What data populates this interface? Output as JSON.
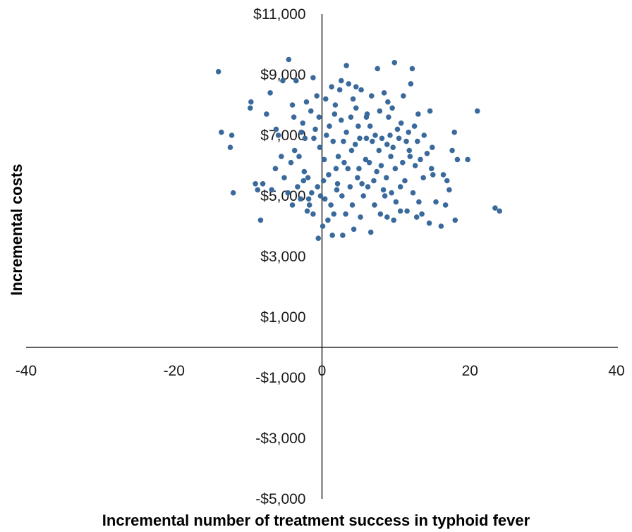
{
  "chart_data": {
    "type": "scatter",
    "title": "",
    "xlabel": "Incremental number of treatment success in typhoid fever",
    "ylabel": "Incremental costs",
    "xlim": [
      -40,
      40
    ],
    "ylim": [
      -5000,
      11000
    ],
    "x_ticks": [
      -40,
      -20,
      0,
      20,
      40
    ],
    "x_tick_labels": [
      "-40",
      "-20",
      "0",
      "20",
      "40"
    ],
    "y_ticks": [
      11000,
      9000,
      7000,
      5000,
      3000,
      1000,
      -1000,
      -3000,
      -5000
    ],
    "y_tick_labels": [
      "$11,000",
      "$9,000",
      "$7,000",
      "$5,000",
      "$3,000",
      "$1,000",
      "-$1,000",
      "-$3,000",
      "-$5,000"
    ],
    "grid": false,
    "legend": "none",
    "marker_color": "#3a6a9c",
    "points": [
      [
        -14,
        9100
      ],
      [
        -13.6,
        7100
      ],
      [
        -12.2,
        7000
      ],
      [
        -12.4,
        6600
      ],
      [
        -12,
        5100
      ],
      [
        -9.6,
        8100
      ],
      [
        -9.7,
        7900
      ],
      [
        -9,
        5400
      ],
      [
        -8.7,
        5200
      ],
      [
        -8.3,
        4200
      ],
      [
        -8,
        5400
      ],
      [
        -7.5,
        7700
      ],
      [
        -7,
        8400
      ],
      [
        -6.2,
        7200
      ],
      [
        -5.9,
        7000
      ],
      [
        -4.5,
        9500
      ],
      [
        -5.3,
        8800
      ],
      [
        -3.5,
        8800
      ],
      [
        -1.2,
        8900
      ],
      [
        -2.4,
        5800
      ],
      [
        -2,
        4500
      ],
      [
        -1.8,
        4900
      ],
      [
        -0.5,
        3600
      ],
      [
        0.1,
        4000
      ],
      [
        0.8,
        4200
      ],
      [
        1.4,
        3700
      ],
      [
        2.8,
        3700
      ],
      [
        3.3,
        9300
      ],
      [
        2.6,
        8800
      ],
      [
        3.6,
        8700
      ],
      [
        4.6,
        8600
      ],
      [
        5.3,
        8500
      ],
      [
        7.5,
        9200
      ],
      [
        9.8,
        9400
      ],
      [
        12.2,
        9200
      ],
      [
        12,
        8700
      ],
      [
        14.6,
        7800
      ],
      [
        13,
        7700
      ],
      [
        17.9,
        7100
      ],
      [
        21,
        7800
      ],
      [
        19.7,
        6200
      ],
      [
        18.3,
        6200
      ],
      [
        17.6,
        6500
      ],
      [
        16.4,
        5700
      ],
      [
        17.2,
        5200
      ],
      [
        16.7,
        4700
      ],
      [
        15.4,
        4800
      ],
      [
        16.9,
        5500
      ],
      [
        14.8,
        5900
      ],
      [
        15,
        5700
      ],
      [
        13.5,
        4400
      ],
      [
        14.5,
        4100
      ],
      [
        16.1,
        4000
      ],
      [
        18,
        4200
      ],
      [
        23.4,
        4600
      ],
      [
        24,
        4500
      ],
      [
        10.6,
        4500
      ],
      [
        8.8,
        4300
      ],
      [
        6.6,
        3800
      ],
      [
        4.3,
        3900
      ],
      [
        -3.7,
        6500
      ],
      [
        -1.5,
        7800
      ],
      [
        0.5,
        8200
      ],
      [
        1.8,
        8000
      ],
      [
        4.6,
        7900
      ],
      [
        6,
        7600
      ],
      [
        7.8,
        7800
      ],
      [
        9.5,
        7900
      ],
      [
        11,
        8300
      ],
      [
        8.4,
        8400
      ],
      [
        10.7,
        7400
      ],
      [
        12.5,
        7300
      ],
      [
        13.8,
        7000
      ],
      [
        14.2,
        6400
      ],
      [
        11.8,
        6500
      ],
      [
        9.2,
        7000
      ],
      [
        6.5,
        7300
      ],
      [
        5.1,
        6900
      ],
      [
        3.3,
        7100
      ],
      [
        1.5,
        6800
      ],
      [
        -0.3,
        6600
      ],
      [
        -2.3,
        6900
      ],
      [
        -3.1,
        6300
      ],
      [
        -4.2,
        6100
      ],
      [
        -5.1,
        5600
      ],
      [
        -6.3,
        5900
      ],
      [
        -4.6,
        5100
      ],
      [
        -3.3,
        5300
      ],
      [
        -1.9,
        5600
      ],
      [
        -0.6,
        5300
      ],
      [
        0.9,
        5700
      ],
      [
        2.1,
        5400
      ],
      [
        3.5,
        5900
      ],
      [
        4.8,
        5600
      ],
      [
        6.2,
        5300
      ],
      [
        7.4,
        5800
      ],
      [
        8.7,
        5600
      ],
      [
        9.9,
        5900
      ],
      [
        11.2,
        5500
      ],
      [
        12.3,
        5100
      ],
      [
        13.1,
        4800
      ],
      [
        11.5,
        4500
      ],
      [
        10,
        4800
      ],
      [
        8.5,
        5000
      ],
      [
        7.1,
        4700
      ],
      [
        5.6,
        5000
      ],
      [
        4.1,
        4700
      ],
      [
        2.7,
        5000
      ],
      [
        1.2,
        4700
      ],
      [
        -0.2,
        5000
      ],
      [
        -1.7,
        4700
      ],
      [
        -2.9,
        4900
      ],
      [
        0.3,
        6200
      ],
      [
        2.2,
        6300
      ],
      [
        4,
        6500
      ],
      [
        5.9,
        6200
      ],
      [
        7.7,
        6500
      ],
      [
        9.3,
        6300
      ],
      [
        10.9,
        6100
      ],
      [
        12.6,
        6000
      ],
      [
        13.7,
        5600
      ],
      [
        12.9,
        6800
      ],
      [
        11.7,
        7100
      ],
      [
        10.2,
        7200
      ],
      [
        8.1,
        6900
      ],
      [
        6.8,
        6800
      ],
      [
        4.9,
        7300
      ],
      [
        2.6,
        7500
      ],
      [
        1,
        7300
      ],
      [
        -0.9,
        7200
      ],
      [
        -2.6,
        7400
      ],
      [
        -3.8,
        7600
      ],
      [
        0.2,
        5500
      ],
      [
        1.9,
        5900
      ],
      [
        3,
        6100
      ],
      [
        5,
        5900
      ],
      [
        6.4,
        6100
      ],
      [
        8,
        6000
      ],
      [
        9.6,
        6600
      ],
      [
        11.4,
        6800
      ],
      [
        -5.5,
        6300
      ],
      [
        -6.8,
        5200
      ],
      [
        -4,
        4700
      ],
      [
        -1.2,
        4400
      ],
      [
        1.6,
        4400
      ],
      [
        3.2,
        4400
      ],
      [
        5.2,
        4300
      ],
      [
        7.9,
        4400
      ],
      [
        9.7,
        4200
      ],
      [
        12.8,
        4300
      ],
      [
        2.4,
        8500
      ],
      [
        4.2,
        8200
      ],
      [
        6.7,
        8300
      ],
      [
        8.9,
        8100
      ],
      [
        1.3,
        8600
      ],
      [
        -0.7,
        8300
      ],
      [
        -2.1,
        8100
      ],
      [
        -4,
        8000
      ],
      [
        -2.8,
        7100
      ],
      [
        -1.1,
        6900
      ],
      [
        0.6,
        7000
      ],
      [
        2.9,
        6800
      ],
      [
        4.5,
        6700
      ],
      [
        6,
        6900
      ],
      [
        7.2,
        7000
      ],
      [
        8.8,
        6700
      ],
      [
        10.4,
        6900
      ],
      [
        11.9,
        6300
      ],
      [
        13.3,
        6200
      ],
      [
        14.9,
        6600
      ],
      [
        3.8,
        5300
      ],
      [
        5.4,
        5400
      ],
      [
        7,
        5500
      ],
      [
        8.3,
        5200
      ],
      [
        9.4,
        5100
      ],
      [
        10.6,
        5300
      ],
      [
        0.4,
        4900
      ],
      [
        2,
        5200
      ],
      [
        -1.4,
        5100
      ],
      [
        -2.5,
        5500
      ],
      [
        6.1,
        7700
      ],
      [
        3.9,
        7600
      ],
      [
        1.7,
        7700
      ],
      [
        -0.4,
        7600
      ],
      [
        9,
        7600
      ]
    ]
  }
}
